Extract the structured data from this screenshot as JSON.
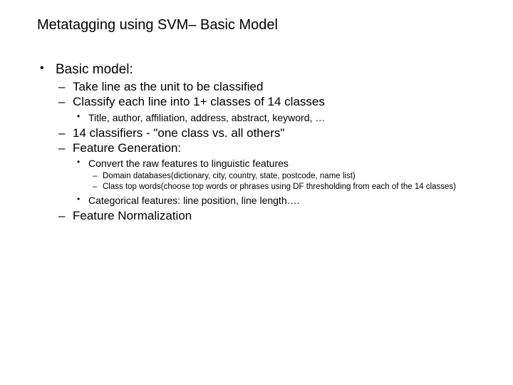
{
  "colors": {
    "background": "#ffffff",
    "text": "#000000"
  },
  "typography": {
    "font_family": "Comic Sans MS",
    "title_fontsize_pt": 20,
    "lvl1_fontsize_pt": 19,
    "lvl2_fontsize_pt": 17,
    "lvl3_fontsize_pt": 14,
    "lvl4_fontsize_pt": 11.5
  },
  "title": "Metatagging using SVM– Basic Model",
  "lvl1_0": "Basic model:",
  "lvl2_0": "Take line as the unit to be classified",
  "lvl2_1": "Classify each line into 1+ classes of 14 classes",
  "lvl3_0": "Title, author, affiliation, address, abstract, keyword, …",
  "lvl2_2": "14 classifiers - \"one class vs. all others\"",
  "lvl2_3": "Feature Generation:",
  "lvl3_1": "Convert the raw features to linguistic features",
  "lvl4_0": "Domain databases(dictionary, city, country, state, postcode, name list)",
  "lvl4_1": "Class top words(choose top words or phrases using DF thresholding from each of the 14 classes)",
  "lvl3_2": "Categorical features: line position, line length….",
  "lvl2_4": "Feature Normalization"
}
